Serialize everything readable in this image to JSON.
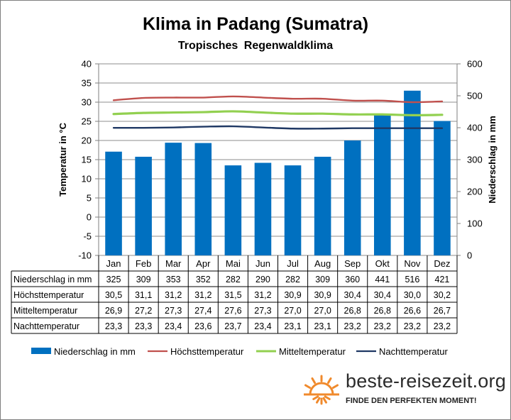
{
  "title": "Klima in Padang (Sumatra)",
  "subtitle": "Tropisches Regenwaldklima",
  "brand": {
    "name": "beste-reisezeit.org",
    "slogan": "FINDE DEN PERFEKTEN MOMENT!",
    "icon": "sun-icon",
    "icon_color": "#f08a2c"
  },
  "chart_data": {
    "type": "bar",
    "categories": [
      "Jan",
      "Feb",
      "Mar",
      "Apr",
      "Mai",
      "Jun",
      "Jul",
      "Aug",
      "Sep",
      "Okt",
      "Nov",
      "Dez"
    ],
    "y_left": {
      "label": "Temperatur in °C",
      "min": -10,
      "max": 40,
      "step": 5
    },
    "y_right": {
      "label": "Niederschlag in mm",
      "min": 0,
      "max": 600,
      "step": 100
    },
    "grid": true,
    "legend_position": "bottom",
    "series": [
      {
        "name": "Niederschlag in mm",
        "kind": "bar",
        "axis": "right",
        "color": "#0070c0",
        "values": [
          325,
          309,
          353,
          352,
          282,
          290,
          282,
          309,
          360,
          441,
          516,
          421
        ],
        "labels": [
          "325",
          "309",
          "353",
          "352",
          "282",
          "290",
          "282",
          "309",
          "360",
          "441",
          "516",
          "421"
        ]
      },
      {
        "name": "Höchsttemperatur",
        "kind": "line",
        "axis": "left",
        "color": "#c0504d",
        "values": [
          30.5,
          31.1,
          31.2,
          31.2,
          31.5,
          31.2,
          30.9,
          30.9,
          30.4,
          30.4,
          30.0,
          30.2
        ],
        "labels": [
          "30,5",
          "31,1",
          "31,2",
          "31,2",
          "31,5",
          "31,2",
          "30,9",
          "30,9",
          "30,4",
          "30,4",
          "30,0",
          "30,2"
        ]
      },
      {
        "name": "Mitteltemperatur",
        "kind": "line",
        "axis": "left",
        "color": "#92d050",
        "values": [
          26.9,
          27.2,
          27.3,
          27.4,
          27.6,
          27.3,
          27.0,
          27.0,
          26.8,
          26.8,
          26.6,
          26.7
        ],
        "labels": [
          "26,9",
          "27,2",
          "27,3",
          "27,4",
          "27,6",
          "27,3",
          "27,0",
          "27,0",
          "26,8",
          "26,8",
          "26,6",
          "26,7"
        ]
      },
      {
        "name": "Nachttemperatur",
        "kind": "line",
        "axis": "left",
        "color": "#1f3864",
        "values": [
          23.3,
          23.3,
          23.4,
          23.6,
          23.7,
          23.4,
          23.1,
          23.1,
          23.2,
          23.2,
          23.2,
          23.2
        ],
        "labels": [
          "23,3",
          "23,3",
          "23,4",
          "23,6",
          "23,7",
          "23,4",
          "23,1",
          "23,1",
          "23,2",
          "23,2",
          "23,2",
          "23,2"
        ]
      }
    ]
  }
}
